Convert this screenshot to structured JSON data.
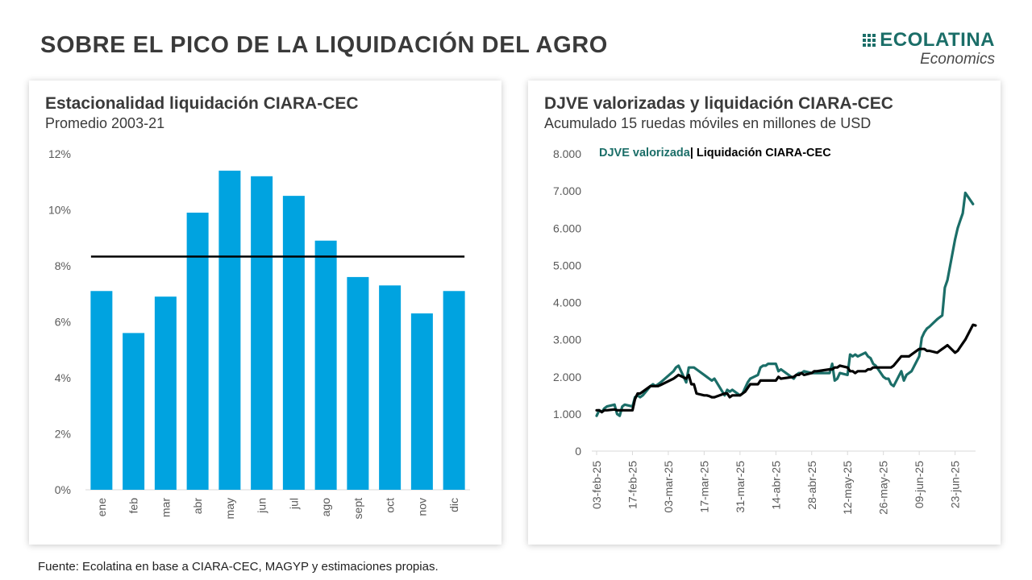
{
  "header": {
    "title": "SOBRE EL PICO DE LA LIQUIDACIÓN DEL AGRO",
    "logo_brand": "ECOLATINA",
    "logo_sub": "Economics"
  },
  "footer": {
    "source": "Fuente: Ecolatina en base a CIARA-CEC, MAGYP y estimaciones propias."
  },
  "colors": {
    "bar": "#00a3e0",
    "djve": "#1b6e68",
    "liquidacion": "#000000",
    "axis_text": "#595959"
  },
  "chart_data": [
    {
      "type": "bar",
      "title": "Estacionalidad liquidación CIARA-CEC",
      "subtitle": "Promedio 2003-21",
      "categories": [
        "ene",
        "feb",
        "mar",
        "abr",
        "may",
        "jun",
        "jul",
        "ago",
        "sept",
        "oct",
        "nov",
        "dic"
      ],
      "values": [
        7.1,
        5.6,
        6.9,
        9.9,
        11.4,
        11.2,
        10.5,
        8.9,
        7.6,
        7.3,
        6.3,
        7.1
      ],
      "reference_line": 8.33,
      "ylim": [
        0,
        12
      ],
      "yticks": [
        0,
        2,
        4,
        6,
        8,
        10,
        12
      ],
      "ytick_labels": [
        "0%",
        "2%",
        "4%",
        "6%",
        "8%",
        "10%",
        "12%"
      ],
      "grid": false
    },
    {
      "type": "line",
      "title": "DJVE valorizadas y liquidación CIARA-CEC",
      "subtitle": "Acumulado 15 ruedas móviles en millones de USD",
      "ylim": [
        0,
        8000
      ],
      "yticks": [
        0,
        1000,
        2000,
        3000,
        4000,
        5000,
        6000,
        7000,
        8000
      ],
      "ytick_labels": [
        "0",
        "1.000",
        "2.000",
        "3.000",
        "4.000",
        "5.000",
        "6.000",
        "7.000",
        "8.000"
      ],
      "xticks": [
        "2025-02-03",
        "2025-02-17",
        "2025-03-03",
        "2025-03-17",
        "2025-03-31",
        "2025-04-14",
        "2025-04-28",
        "2025-05-12",
        "2025-05-26",
        "2025-06-09",
        "2025-06-23"
      ],
      "xtick_labels": [
        "03-feb-25",
        "17-feb-25",
        "03-mar-25",
        "17-mar-25",
        "31-mar-25",
        "14-abr-25",
        "28-abr-25",
        "12-may-25",
        "26-may-25",
        "09-jun-25",
        "23-jun-25"
      ],
      "legend": {
        "separator": "|",
        "placement": "top-left"
      },
      "grid": false,
      "series": [
        {
          "name": "DJVE valorizada",
          "points": [
            [
              "2025-02-03",
              950
            ],
            [
              "2025-02-04",
              1100
            ],
            [
              "2025-02-05",
              1050
            ],
            [
              "2025-02-06",
              1150
            ],
            [
              "2025-02-07",
              1200
            ],
            [
              "2025-02-10",
              1250
            ],
            [
              "2025-02-11",
              1000
            ],
            [
              "2025-02-12",
              950
            ],
            [
              "2025-02-13",
              1200
            ],
            [
              "2025-02-14",
              1250
            ],
            [
              "2025-02-17",
              1200
            ],
            [
              "2025-02-18",
              1450
            ],
            [
              "2025-02-19",
              1500
            ],
            [
              "2025-02-20",
              1450
            ],
            [
              "2025-02-21",
              1500
            ],
            [
              "2025-02-24",
              1750
            ],
            [
              "2025-02-25",
              1800
            ],
            [
              "2025-02-26",
              1750
            ],
            [
              "2025-02-27",
              1800
            ],
            [
              "2025-02-28",
              1850
            ],
            [
              "2025-03-05",
              2150
            ],
            [
              "2025-03-06",
              2250
            ],
            [
              "2025-03-07",
              2300
            ],
            [
              "2025-03-10",
              1850
            ],
            [
              "2025-03-11",
              2250
            ],
            [
              "2025-03-12",
              2250
            ],
            [
              "2025-03-13",
              2250
            ],
            [
              "2025-03-14",
              2200
            ],
            [
              "2025-03-17",
              2050
            ],
            [
              "2025-03-18",
              2000
            ],
            [
              "2025-03-19",
              1950
            ],
            [
              "2025-03-20",
              1900
            ],
            [
              "2025-03-21",
              1950
            ],
            [
              "2025-03-25",
              1500
            ],
            [
              "2025-03-26",
              1650
            ],
            [
              "2025-03-27",
              1600
            ],
            [
              "2025-03-28",
              1650
            ],
            [
              "2025-03-31",
              1500
            ],
            [
              "2025-04-01",
              1550
            ],
            [
              "2025-04-02",
              1700
            ],
            [
              "2025-04-03",
              1850
            ],
            [
              "2025-04-04",
              1950
            ],
            [
              "2025-04-07",
              2050
            ],
            [
              "2025-04-08",
              2250
            ],
            [
              "2025-04-09",
              2300
            ],
            [
              "2025-04-10",
              2300
            ],
            [
              "2025-04-11",
              2350
            ],
            [
              "2025-04-14",
              2350
            ],
            [
              "2025-04-15",
              2150
            ],
            [
              "2025-04-16",
              2200
            ],
            [
              "2025-04-21",
              1950
            ],
            [
              "2025-04-22",
              2050
            ],
            [
              "2025-04-23",
              2100
            ],
            [
              "2025-04-24",
              2100
            ],
            [
              "2025-04-25",
              2150
            ],
            [
              "2025-04-28",
              2100
            ],
            [
              "2025-04-29",
              2100
            ],
            [
              "2025-04-30",
              2100
            ],
            [
              "2025-05-05",
              2100
            ],
            [
              "2025-05-06",
              2350
            ],
            [
              "2025-05-07",
              1900
            ],
            [
              "2025-05-08",
              1950
            ],
            [
              "2025-05-09",
              2100
            ],
            [
              "2025-05-12",
              2050
            ],
            [
              "2025-05-13",
              2600
            ],
            [
              "2025-05-14",
              2550
            ],
            [
              "2025-05-15",
              2600
            ],
            [
              "2025-05-16",
              2550
            ],
            [
              "2025-05-19",
              2650
            ],
            [
              "2025-05-20",
              2550
            ],
            [
              "2025-05-21",
              2500
            ],
            [
              "2025-05-22",
              2350
            ],
            [
              "2025-05-23",
              2300
            ],
            [
              "2025-05-26",
              2000
            ],
            [
              "2025-05-27",
              1950
            ],
            [
              "2025-05-28",
              1950
            ],
            [
              "2025-05-29",
              1800
            ],
            [
              "2025-05-30",
              1750
            ],
            [
              "2025-06-02",
              2150
            ],
            [
              "2025-06-03",
              1900
            ],
            [
              "2025-06-04",
              2050
            ],
            [
              "2025-06-05",
              2100
            ],
            [
              "2025-06-06",
              2150
            ],
            [
              "2025-06-09",
              2550
            ],
            [
              "2025-06-10",
              3050
            ],
            [
              "2025-06-11",
              3200
            ],
            [
              "2025-06-12",
              3300
            ],
            [
              "2025-06-13",
              3350
            ],
            [
              "2025-06-16",
              3550
            ],
            [
              "2025-06-17",
              3600
            ],
            [
              "2025-06-18",
              3650
            ],
            [
              "2025-06-19",
              4400
            ],
            [
              "2025-06-20",
              4600
            ],
            [
              "2025-06-23",
              5700
            ],
            [
              "2025-06-24",
              6000
            ],
            [
              "2025-06-25",
              6200
            ],
            [
              "2025-06-26",
              6400
            ],
            [
              "2025-06-27",
              6950
            ],
            [
              "2025-06-30",
              6650
            ]
          ]
        },
        {
          "name": "Liquidación CIARA-CEC",
          "points": [
            [
              "2025-02-03",
              1100
            ],
            [
              "2025-02-04",
              1100
            ],
            [
              "2025-02-05",
              1050
            ],
            [
              "2025-02-06",
              1100
            ],
            [
              "2025-02-07",
              1100
            ],
            [
              "2025-02-10",
              1120
            ],
            [
              "2025-02-11",
              1100
            ],
            [
              "2025-02-12",
              1100
            ],
            [
              "2025-02-13",
              1100
            ],
            [
              "2025-02-14",
              1100
            ],
            [
              "2025-02-17",
              1100
            ],
            [
              "2025-02-18",
              1400
            ],
            [
              "2025-02-19",
              1550
            ],
            [
              "2025-02-20",
              1550
            ],
            [
              "2025-02-21",
              1600
            ],
            [
              "2025-02-24",
              1750
            ],
            [
              "2025-02-25",
              1750
            ],
            [
              "2025-02-26",
              1750
            ],
            [
              "2025-02-27",
              1750
            ],
            [
              "2025-02-28",
              1780
            ],
            [
              "2025-03-05",
              1950
            ],
            [
              "2025-03-06",
              2000
            ],
            [
              "2025-03-07",
              2050
            ],
            [
              "2025-03-10",
              1950
            ],
            [
              "2025-03-11",
              2050
            ],
            [
              "2025-03-12",
              1800
            ],
            [
              "2025-03-13",
              1800
            ],
            [
              "2025-03-14",
              1550
            ],
            [
              "2025-03-17",
              1500
            ],
            [
              "2025-03-18",
              1500
            ],
            [
              "2025-03-19",
              1480
            ],
            [
              "2025-03-20",
              1450
            ],
            [
              "2025-03-21",
              1450
            ],
            [
              "2025-03-25",
              1550
            ],
            [
              "2025-03-26",
              1550
            ],
            [
              "2025-03-27",
              1450
            ],
            [
              "2025-03-28",
              1500
            ],
            [
              "2025-03-31",
              1500
            ],
            [
              "2025-04-01",
              1550
            ],
            [
              "2025-04-02",
              1600
            ],
            [
              "2025-04-03",
              1700
            ],
            [
              "2025-04-04",
              1800
            ],
            [
              "2025-04-07",
              1800
            ],
            [
              "2025-04-08",
              1900
            ],
            [
              "2025-04-09",
              1900
            ],
            [
              "2025-04-10",
              1900
            ],
            [
              "2025-04-11",
              1900
            ],
            [
              "2025-04-14",
              1900
            ],
            [
              "2025-04-15",
              2000
            ],
            [
              "2025-04-16",
              1950
            ],
            [
              "2025-04-21",
              2000
            ],
            [
              "2025-04-22",
              2050
            ],
            [
              "2025-04-23",
              2050
            ],
            [
              "2025-04-24",
              2100
            ],
            [
              "2025-04-25",
              2050
            ],
            [
              "2025-04-28",
              2100
            ],
            [
              "2025-04-29",
              2150
            ],
            [
              "2025-04-30",
              2150
            ],
            [
              "2025-05-05",
              2200
            ],
            [
              "2025-05-06",
              2200
            ],
            [
              "2025-05-07",
              2250
            ],
            [
              "2025-05-08",
              2250
            ],
            [
              "2025-05-09",
              2300
            ],
            [
              "2025-05-12",
              2250
            ],
            [
              "2025-05-13",
              2150
            ],
            [
              "2025-05-14",
              2150
            ],
            [
              "2025-05-15",
              2100
            ],
            [
              "2025-05-16",
              2150
            ],
            [
              "2025-05-19",
              2150
            ],
            [
              "2025-05-20",
              2200
            ],
            [
              "2025-05-21",
              2200
            ],
            [
              "2025-05-22",
              2250
            ],
            [
              "2025-05-23",
              2250
            ],
            [
              "2025-05-26",
              2250
            ],
            [
              "2025-05-27",
              2250
            ],
            [
              "2025-05-28",
              2250
            ],
            [
              "2025-05-29",
              2250
            ],
            [
              "2025-05-30",
              2300
            ],
            [
              "2025-06-02",
              2550
            ],
            [
              "2025-06-03",
              2550
            ],
            [
              "2025-06-04",
              2550
            ],
            [
              "2025-06-05",
              2550
            ],
            [
              "2025-06-06",
              2600
            ],
            [
              "2025-06-09",
              2750
            ],
            [
              "2025-06-10",
              2750
            ],
            [
              "2025-06-11",
              2750
            ],
            [
              "2025-06-12",
              2700
            ],
            [
              "2025-06-13",
              2700
            ],
            [
              "2025-06-16",
              2650
            ],
            [
              "2025-06-17",
              2700
            ],
            [
              "2025-06-18",
              2750
            ],
            [
              "2025-06-19",
              2800
            ],
            [
              "2025-06-20",
              2850
            ],
            [
              "2025-06-23",
              2650
            ],
            [
              "2025-06-24",
              2700
            ],
            [
              "2025-06-25",
              2800
            ],
            [
              "2025-06-26",
              2900
            ],
            [
              "2025-06-27",
              3000
            ],
            [
              "2025-06-30",
              3400
            ],
            [
              "2025-07-01",
              3380
            ]
          ]
        }
      ]
    }
  ]
}
